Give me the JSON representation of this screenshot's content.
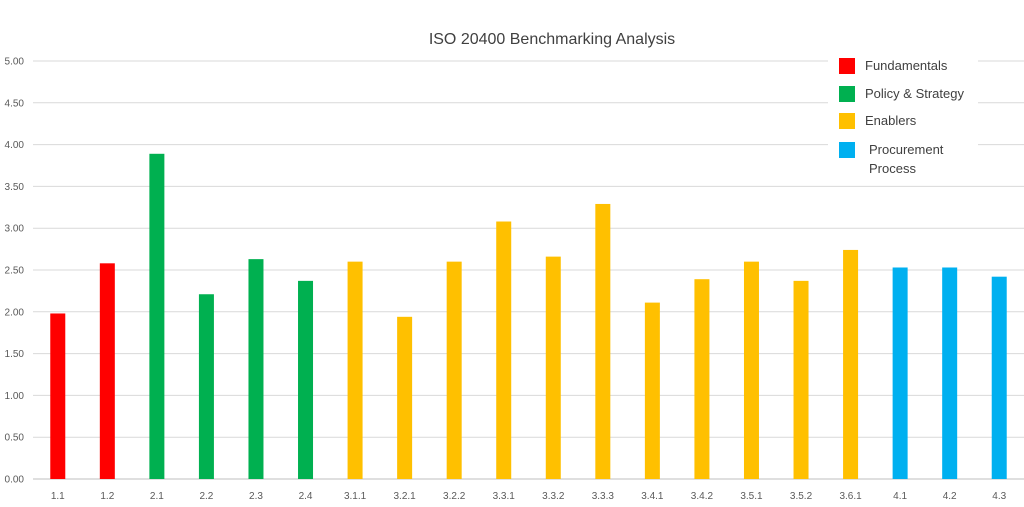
{
  "chart_data": {
    "type": "bar",
    "title": "ISO 20400 Benchmarking Analysis",
    "xlabel": "",
    "ylabel": "",
    "ylim": [
      0,
      5
    ],
    "yticks": [
      "0.00",
      "0.50",
      "1.00",
      "1.50",
      "2.00",
      "2.50",
      "3.00",
      "3.50",
      "4.00",
      "4.50",
      "5.00"
    ],
    "grid": true,
    "legend_position": "top-right",
    "categories": [
      "1.1",
      "1.2",
      "2.1",
      "2.2",
      "2.3",
      "2.4",
      "3.1.1",
      "3.2.1",
      "3.2.2",
      "3.3.1",
      "3.3.2",
      "3.3.3",
      "3.4.1",
      "3.4.2",
      "3.5.1",
      "3.5.2",
      "3.6.1",
      "4.1",
      "4.2",
      "4.3"
    ],
    "values": [
      1.98,
      2.58,
      3.89,
      2.21,
      2.63,
      2.37,
      2.6,
      1.94,
      2.6,
      3.08,
      2.66,
      3.29,
      2.11,
      2.39,
      2.6,
      2.37,
      2.74,
      2.53,
      2.53,
      2.42
    ],
    "groups": [
      0,
      0,
      1,
      1,
      1,
      1,
      2,
      2,
      2,
      2,
      2,
      2,
      2,
      2,
      2,
      2,
      2,
      3,
      3,
      3
    ],
    "legend": [
      {
        "label": [
          "Fundamentals"
        ],
        "color": "#ff0000"
      },
      {
        "label": [
          "Policy & Strategy"
        ],
        "color": "#00b050"
      },
      {
        "label": [
          "Enablers"
        ],
        "color": "#ffc000"
      },
      {
        "label": [
          "Procurement",
          "Process"
        ],
        "color": "#00b0f0"
      }
    ]
  }
}
